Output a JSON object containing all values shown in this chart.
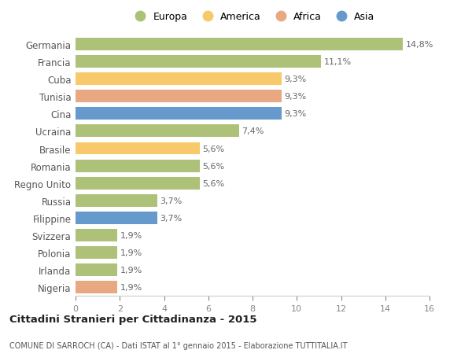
{
  "countries": [
    "Germania",
    "Francia",
    "Cuba",
    "Tunisia",
    "Cina",
    "Ucraina",
    "Brasile",
    "Romania",
    "Regno Unito",
    "Russia",
    "Filippine",
    "Svizzera",
    "Polonia",
    "Irlanda",
    "Nigeria"
  ],
  "values": [
    14.8,
    11.1,
    9.3,
    9.3,
    9.3,
    7.4,
    5.6,
    5.6,
    5.6,
    3.7,
    3.7,
    1.9,
    1.9,
    1.9,
    1.9
  ],
  "labels": [
    "14,8%",
    "11,1%",
    "9,3%",
    "9,3%",
    "9,3%",
    "7,4%",
    "5,6%",
    "5,6%",
    "5,6%",
    "3,7%",
    "3,7%",
    "1,9%",
    "1,9%",
    "1,9%",
    "1,9%"
  ],
  "categories": [
    "Europa",
    "America",
    "Africa",
    "Asia"
  ],
  "colors": {
    "Europa": "#adc178",
    "America": "#f7c96a",
    "Africa": "#e8a882",
    "Asia": "#6699cc"
  },
  "bar_colors": [
    "Europa",
    "Europa",
    "America",
    "Africa",
    "Asia",
    "Europa",
    "America",
    "Europa",
    "Europa",
    "Europa",
    "Asia",
    "Europa",
    "Europa",
    "Europa",
    "Africa"
  ],
  "background_color": "#ffffff",
  "title": "Cittadini Stranieri per Cittadinanza - 2015",
  "subtitle": "COMUNE DI SARROCH (CA) - Dati ISTAT al 1° gennaio 2015 - Elaborazione TUTTITALIA.IT",
  "xlim": [
    0,
    16
  ],
  "xticks": [
    0,
    2,
    4,
    6,
    8,
    10,
    12,
    14,
    16
  ],
  "legend_colors": {
    "Europa": "#adc178",
    "America": "#f7c96a",
    "Africa": "#e8a882",
    "Asia": "#6699cc"
  }
}
